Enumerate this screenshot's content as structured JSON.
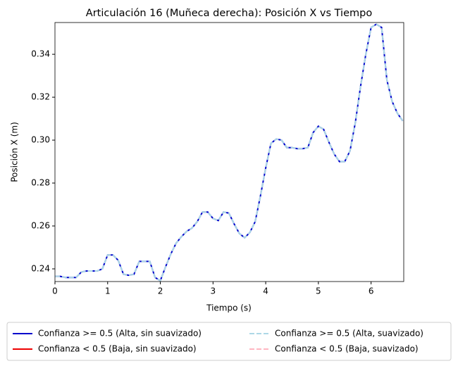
{
  "chart_data": {
    "type": "line",
    "title": "Articulación 16 (Muñeca derecha): Posición X vs Tiempo",
    "xlabel": "Tiempo (s)",
    "ylabel": "Posición X (m)",
    "x": [
      0,
      0.1,
      0.2,
      0.3,
      0.4,
      0.5,
      0.6,
      0.7,
      0.8,
      0.9,
      1,
      1.1,
      1.2,
      1.3,
      1.4,
      1.5,
      1.6,
      1.7,
      1.8,
      1.9,
      2,
      2.1,
      2.2,
      2.3,
      2.4,
      2.5,
      2.6,
      2.7,
      2.8,
      2.9,
      3,
      3.1,
      3.2,
      3.3,
      3.4,
      3.5,
      3.6,
      3.7,
      3.8,
      3.9,
      4,
      4.1,
      4.2,
      4.3,
      4.4,
      4.5,
      4.6,
      4.7,
      4.8,
      4.9,
      5,
      5.1,
      5.2,
      5.3,
      5.4,
      5.5,
      5.6,
      5.7,
      5.8,
      5.9,
      6,
      6.1,
      6.2,
      6.3,
      6.4,
      6.5,
      6.6
    ],
    "series": [
      {
        "name": "Confianza >= 0.5 (Alta, sin suavizado)",
        "color": "#0000cc",
        "linestyle": "solid",
        "values": [
          0.2365,
          0.2365,
          0.236,
          0.236,
          0.236,
          0.2385,
          0.239,
          0.239,
          0.239,
          0.24,
          0.2465,
          0.2465,
          0.244,
          0.2375,
          0.237,
          0.2375,
          0.2435,
          0.2435,
          0.2435,
          0.236,
          0.2345,
          0.241,
          0.247,
          0.252,
          0.255,
          0.2575,
          0.259,
          0.262,
          0.2665,
          0.2665,
          0.2635,
          0.2625,
          0.2665,
          0.266,
          0.261,
          0.2565,
          0.2545,
          0.257,
          0.262,
          0.274,
          0.287,
          0.2985,
          0.3005,
          0.3,
          0.2965,
          0.2965,
          0.296,
          0.296,
          0.2965,
          0.3035,
          0.3065,
          0.305,
          0.299,
          0.2935,
          0.29,
          0.29,
          0.295,
          0.308,
          0.325,
          0.34,
          0.3525,
          0.354,
          0.3525,
          0.328,
          0.318,
          0.3125,
          0.309
        ]
      },
      {
        "name": "Confianza < 0.5 (Baja, sin suavizado)",
        "color": "#ee0000",
        "linestyle": "solid",
        "values": [
          null,
          null,
          null,
          null,
          null,
          null,
          null,
          null,
          null,
          null,
          null,
          null,
          null,
          null,
          null,
          null,
          null,
          null,
          null,
          null,
          null,
          null,
          null,
          null,
          null,
          null,
          null,
          null,
          null,
          null,
          null,
          null,
          null,
          null,
          null,
          null,
          null,
          null,
          null,
          null,
          null,
          null,
          null,
          null,
          null,
          null,
          null,
          null,
          null,
          null,
          null,
          null,
          null,
          null,
          null,
          null,
          null,
          null,
          null,
          null,
          null,
          null,
          null,
          null,
          null,
          null,
          null
        ]
      },
      {
        "name": "Confianza >= 0.5 (Alta, suavizado)",
        "color": "#add8e6",
        "linestyle": "dashed",
        "values": [
          0.2365,
          0.2365,
          0.236,
          0.236,
          0.236,
          0.2385,
          0.239,
          0.239,
          0.239,
          0.24,
          0.2465,
          0.2465,
          0.244,
          0.2375,
          0.237,
          0.2375,
          0.2435,
          0.2435,
          0.2435,
          0.236,
          0.2345,
          0.241,
          0.247,
          0.252,
          0.255,
          0.2575,
          0.259,
          0.262,
          0.2665,
          0.2665,
          0.2635,
          0.2625,
          0.2665,
          0.266,
          0.261,
          0.2565,
          0.2545,
          0.257,
          0.262,
          0.274,
          0.287,
          0.2985,
          0.3005,
          0.3,
          0.2965,
          0.2965,
          0.296,
          0.296,
          0.2965,
          0.3035,
          0.3065,
          0.305,
          0.299,
          0.2935,
          0.29,
          0.29,
          0.295,
          0.308,
          0.325,
          0.34,
          0.3525,
          0.354,
          0.3525,
          0.328,
          0.318,
          0.3125,
          0.309
        ]
      },
      {
        "name": "Confianza < 0.5 (Baja, suavizado)",
        "color": "#ffb6c1",
        "linestyle": "dashed",
        "values": [
          null,
          null,
          null,
          null,
          null,
          null,
          null,
          null,
          null,
          null,
          null,
          null,
          null,
          null,
          null,
          null,
          null,
          null,
          null,
          null,
          null,
          null,
          null,
          null,
          null,
          null,
          null,
          null,
          null,
          null,
          null,
          null,
          null,
          null,
          null,
          null,
          null,
          null,
          null,
          null,
          null,
          null,
          null,
          null,
          null,
          null,
          null,
          null,
          null,
          null,
          null,
          null,
          null,
          null,
          null,
          null,
          null,
          null,
          null,
          null,
          null,
          null,
          null,
          null,
          null,
          null,
          null
        ]
      }
    ],
    "xlim": [
      0,
      6.62
    ],
    "xticks": [
      0,
      1,
      2,
      3,
      4,
      5,
      6
    ],
    "ylim": [
      0.2341,
      0.3548
    ],
    "yticks": [
      0.24,
      0.26,
      0.28,
      {
        "value": 0.3,
        "label": "0.30"
      },
      0.32,
      0.34
    ],
    "legend": "lower center",
    "legend_columns": 2,
    "grid": false
  }
}
